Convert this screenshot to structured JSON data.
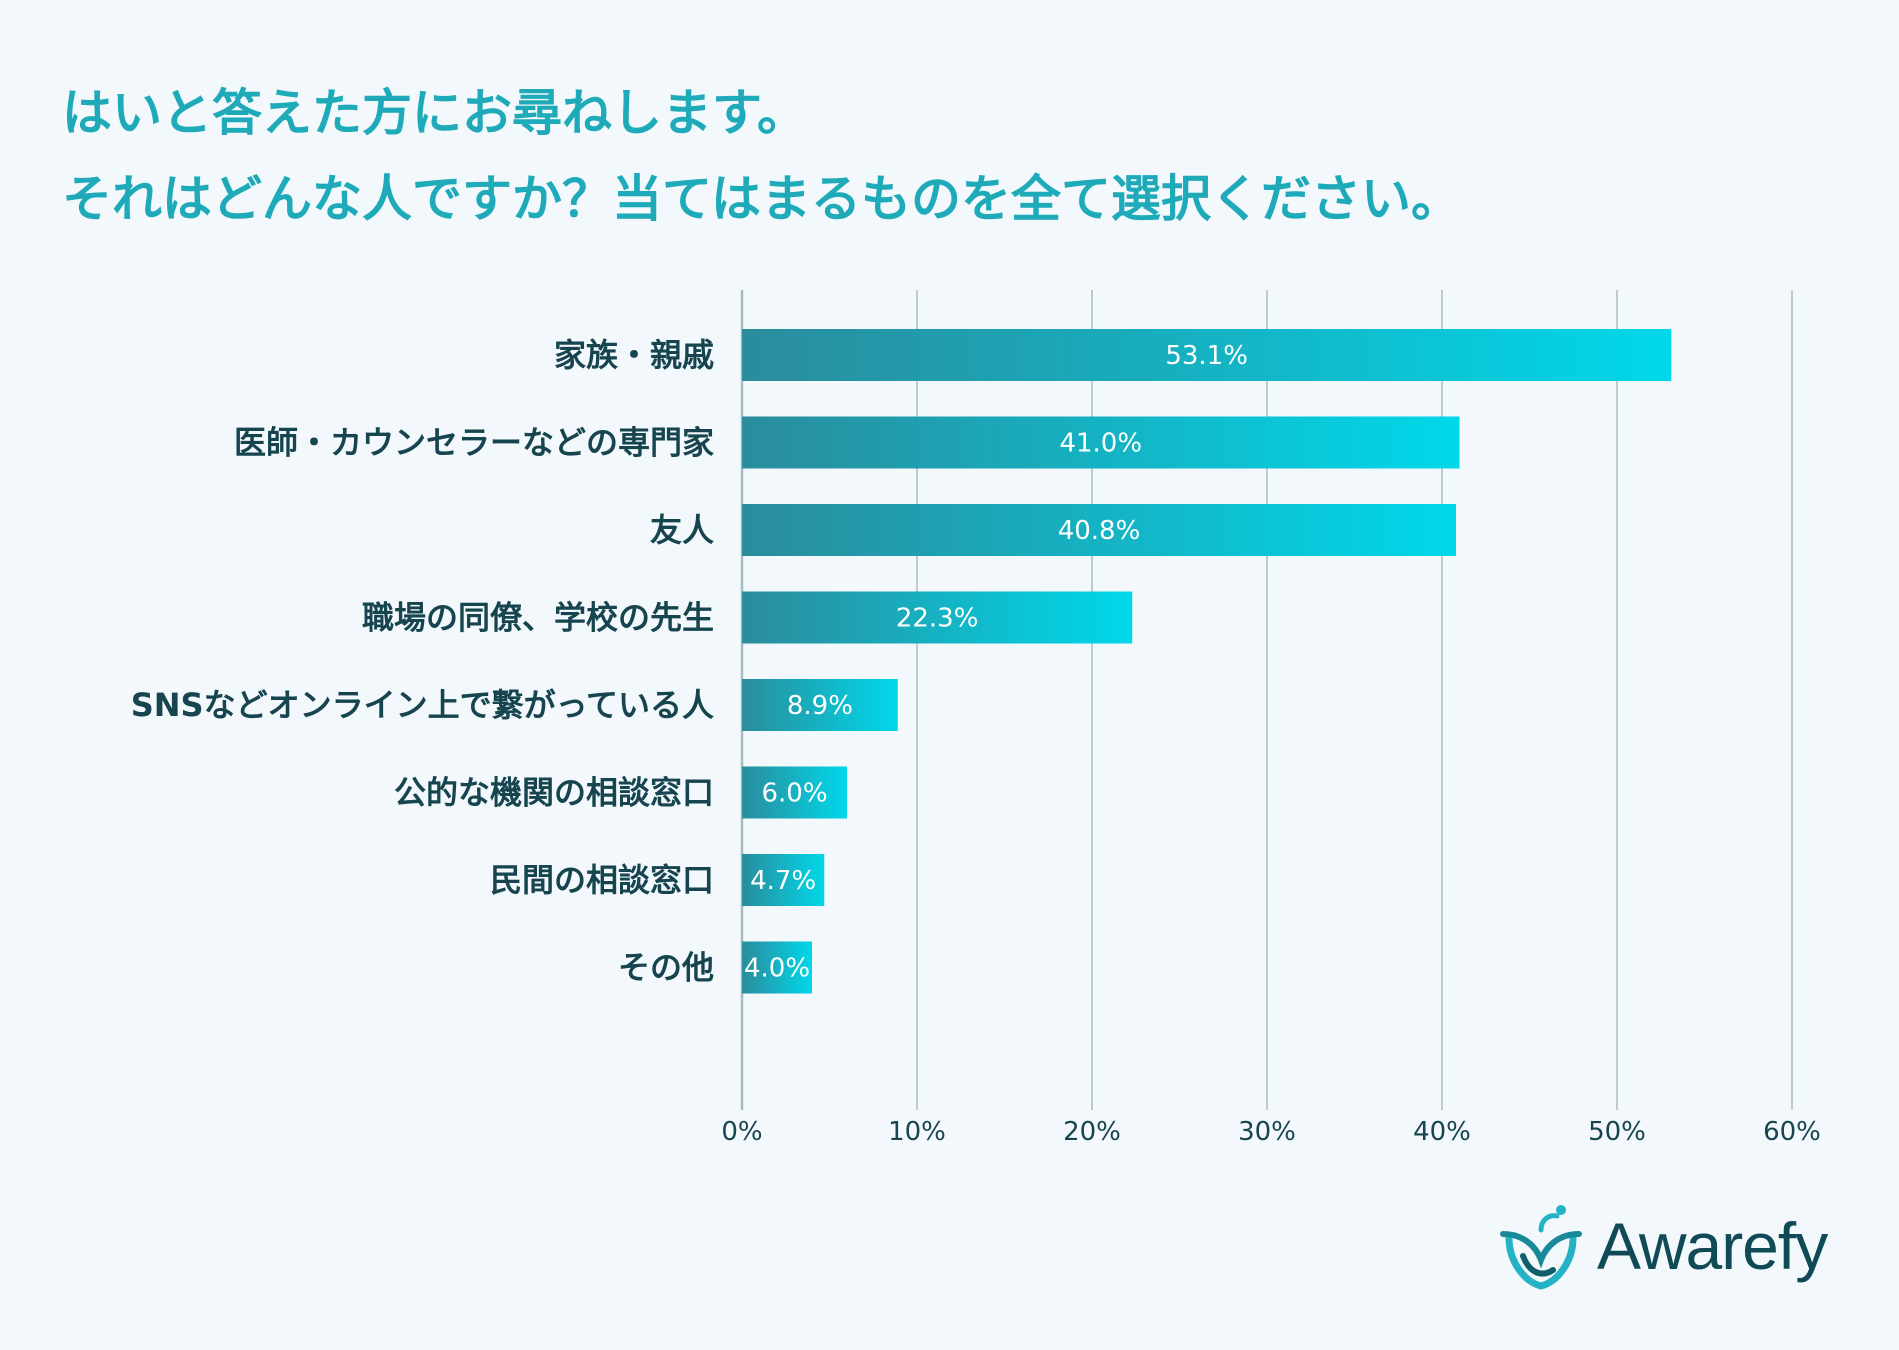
{
  "title": {
    "line1": "はいと答えた方にお尋ねします。",
    "line2": "それはどんな人ですか？当てはまるものを全て選択ください。"
  },
  "chart_data": {
    "type": "bar",
    "orientation": "horizontal",
    "categories": [
      "家族・親戚",
      "医師・カウンセラーなどの専門家",
      "友人",
      "職場の同僚、学校の先生",
      "SNSなどオンライン上で繋がっている人",
      "公的な機関の相談窓口",
      "民間の相談窓口",
      "その他"
    ],
    "values": [
      53.1,
      41.0,
      40.8,
      22.3,
      8.9,
      6.0,
      4.7,
      4.0
    ],
    "value_labels": [
      "53.1%",
      "41.0%",
      "40.8%",
      "22.3%",
      "8.9%",
      "6.0%",
      "4.7%",
      "4.0%"
    ],
    "xlim": [
      0,
      60
    ],
    "xticks": [
      0,
      10,
      20,
      30,
      40,
      50,
      60
    ],
    "xtick_labels": [
      "0%",
      "10%",
      "20%",
      "30%",
      "40%",
      "50%",
      "60%"
    ],
    "grid": true,
    "colors": {
      "gradient_start": "#2a8c9c",
      "gradient_end": "#00d8ea",
      "text": "#17454f",
      "grid": "#a9bcc2"
    }
  },
  "logo": {
    "text": "Awarefy"
  }
}
